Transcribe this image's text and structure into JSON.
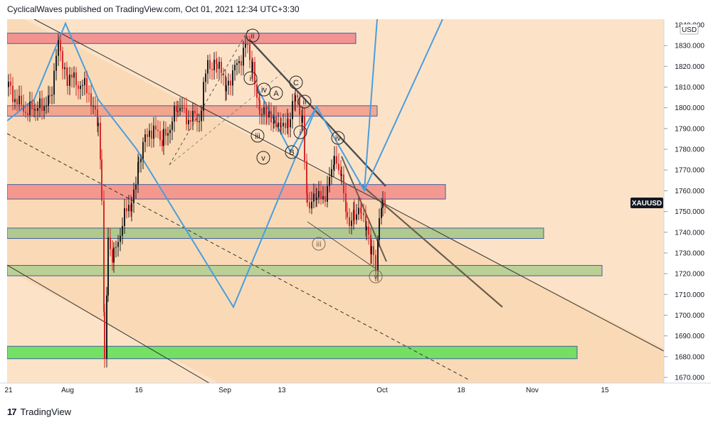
{
  "header": {
    "publisher": "CyclicalWaves published on TradingView.com, Oct 01, 2021 12:34 UTC+3:30"
  },
  "footer": {
    "logo_mark": "17",
    "brand": "TradingView"
  },
  "chart_data": {
    "type": "candlestick",
    "symbol": "XAUUSD",
    "currency": "USD",
    "ylim": [
      1665,
      1845
    ],
    "y_ticks": [
      "1670.000",
      "1680.000",
      "1690.000",
      "1700.000",
      "1710.000",
      "1720.000",
      "1730.000",
      "1740.000",
      "1750.000",
      "1760.000",
      "1770.000",
      "1780.000",
      "1790.000",
      "1800.000",
      "1810.000",
      "1820.000",
      "1830.000"
    ],
    "y_top_partial": "1840.000",
    "x_ticks": [
      "21",
      "Aug",
      "16",
      "Sep",
      "13",
      "Oct",
      "18",
      "Nov",
      "15"
    ],
    "last_price_label": "XAUUSD",
    "zones": [
      {
        "name": "resistance-1",
        "top": 1836,
        "bottom": 1831,
        "color": "#f28c8c"
      },
      {
        "name": "resistance-2",
        "top": 1801,
        "bottom": 1796,
        "color": "#f4a08a"
      },
      {
        "name": "resistance-3",
        "top": 1763,
        "bottom": 1756,
        "color": "#f4918a"
      },
      {
        "name": "support-1",
        "top": 1742,
        "bottom": 1737,
        "color": "#a8c98a"
      },
      {
        "name": "support-2",
        "top": 1724,
        "bottom": 1719,
        "color": "#b5cf92"
      },
      {
        "name": "support-3",
        "top": 1685,
        "bottom": 1679,
        "color": "#66e05a"
      }
    ],
    "wave_labels": [
      "ii",
      "i",
      "iv",
      "A",
      "C",
      "ii",
      "iii",
      "v",
      "B",
      "i",
      "iv",
      "iii",
      "v"
    ],
    "colors": {
      "up": "#1e1e1e",
      "down": "#d62b2b",
      "zigzag": "#4a9ede",
      "trend": "#4d4d4d"
    }
  }
}
